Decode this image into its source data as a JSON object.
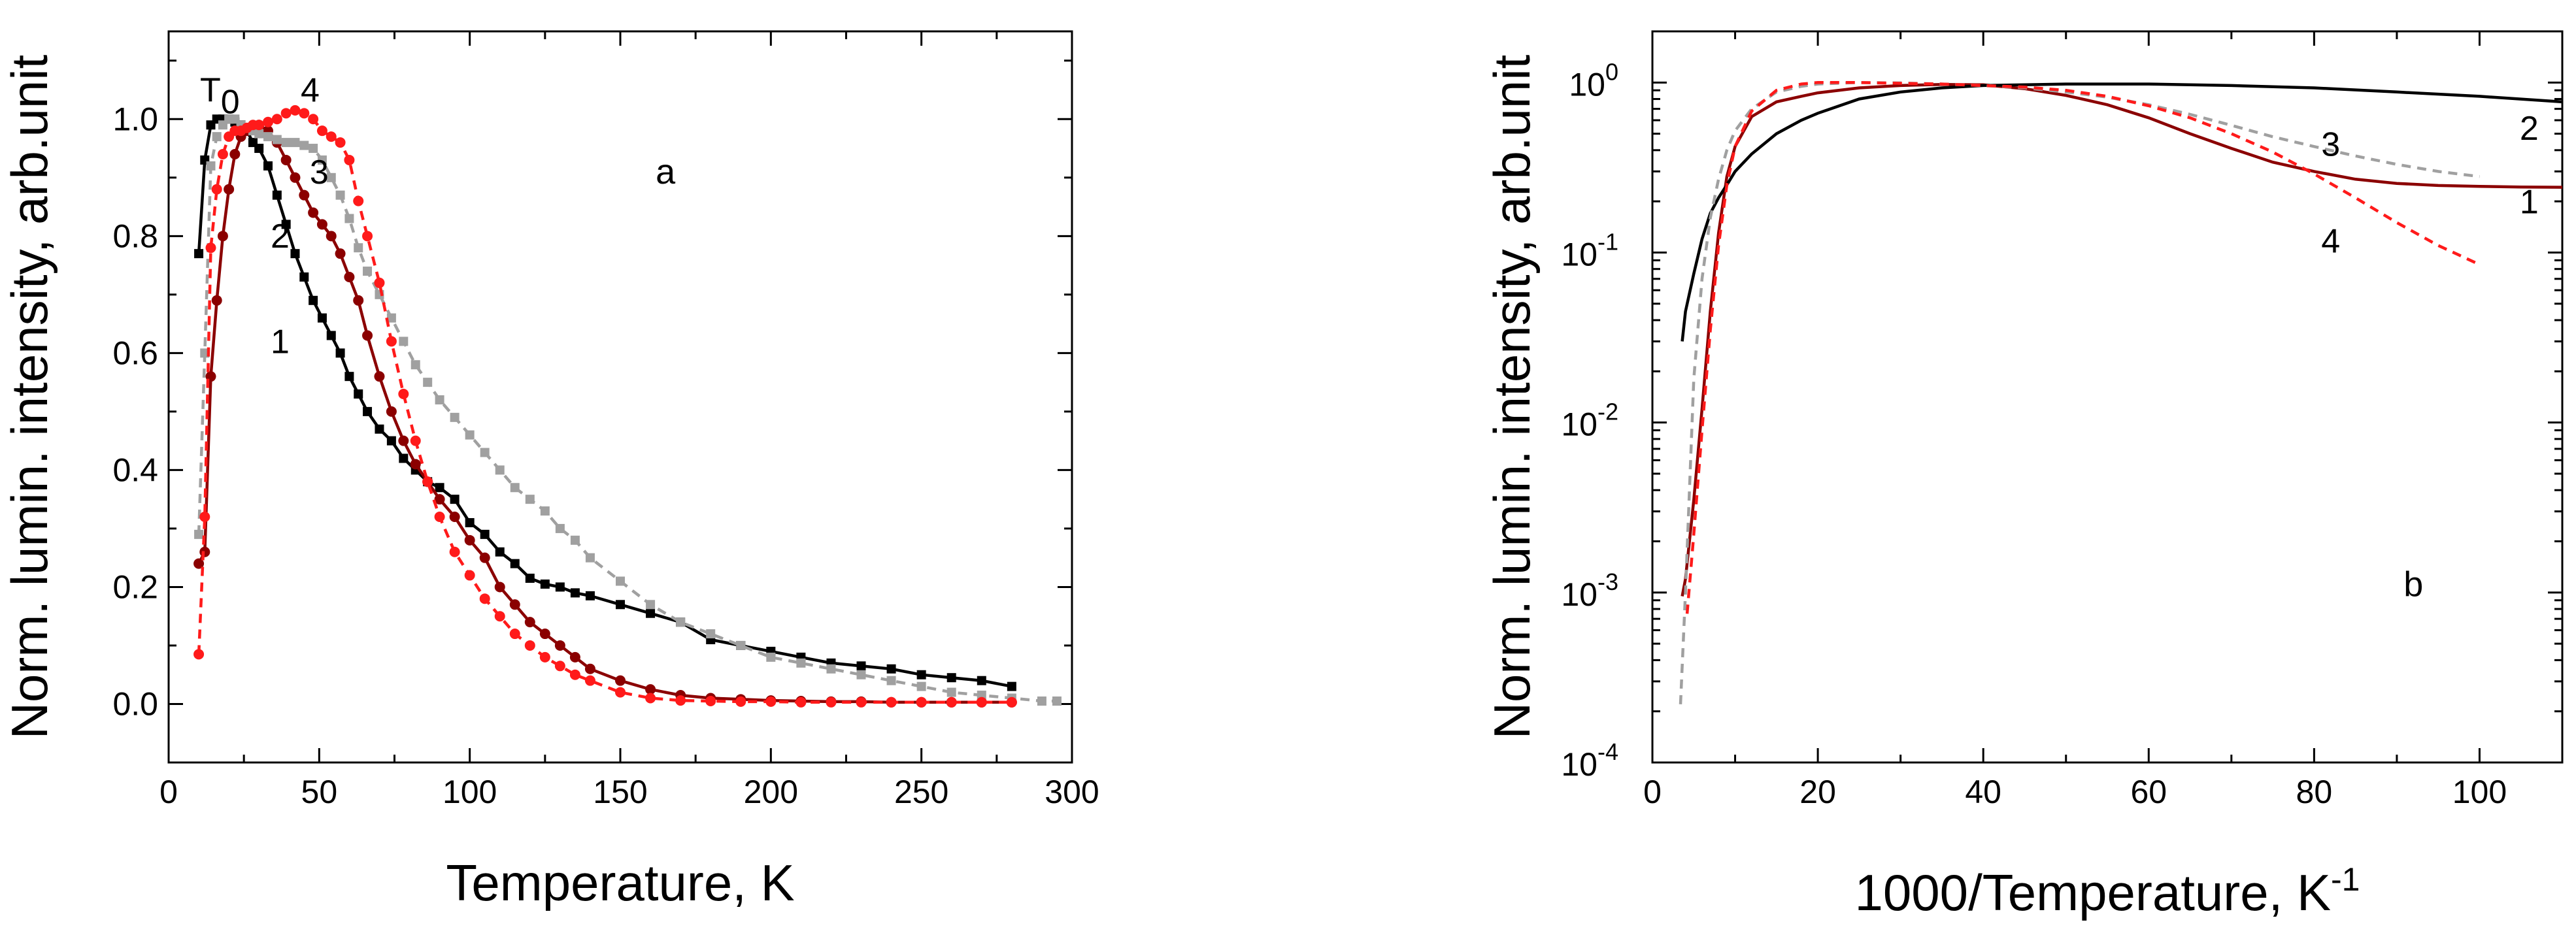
{
  "chart_data": [
    {
      "type": "line",
      "panel": "a",
      "xlabel": "Temperature, K",
      "ylabel": "Norm. lumin. intensity, arb.unit",
      "xlim": [
        0,
        300
      ],
      "ylim": [
        -0.1,
        1.15
      ],
      "xticks": [
        "0",
        "50",
        "100",
        "150",
        "200",
        "250",
        "300"
      ],
      "yticks": [
        "0.0",
        "0.2",
        "0.4",
        "0.6",
        "0.8",
        "1.0"
      ],
      "grid": false,
      "legend": "none",
      "annotations": [
        {
          "text": "T",
          "sub": "0",
          "x": 17,
          "y": 1.03
        },
        {
          "text": "a",
          "x": 165,
          "y": 0.89
        }
      ],
      "series": [
        {
          "curve_label": "1",
          "color": "#000000",
          "dash": "solid",
          "marker": "square",
          "label_pos": [
            37,
            0.6
          ],
          "x": [
            10,
            12,
            14,
            16,
            18,
            20,
            22,
            24,
            26,
            28,
            30,
            33,
            36,
            39,
            42,
            45,
            48,
            51,
            54,
            57,
            60,
            63,
            66,
            70,
            74,
            78,
            82,
            86,
            90,
            95,
            100,
            105,
            110,
            115,
            120,
            125,
            130,
            135,
            140,
            150,
            160,
            170,
            180,
            190,
            200,
            210,
            220,
            230,
            240,
            250,
            260,
            270,
            280
          ],
          "y": [
            0.77,
            0.93,
            0.99,
            1.0,
            1.0,
            1.0,
            0.995,
            0.99,
            0.98,
            0.96,
            0.95,
            0.92,
            0.87,
            0.82,
            0.77,
            0.73,
            0.69,
            0.66,
            0.63,
            0.6,
            0.56,
            0.53,
            0.5,
            0.47,
            0.45,
            0.42,
            0.4,
            0.38,
            0.37,
            0.35,
            0.31,
            0.29,
            0.26,
            0.24,
            0.215,
            0.205,
            0.2,
            0.19,
            0.185,
            0.17,
            0.155,
            0.14,
            0.11,
            0.1,
            0.09,
            0.08,
            0.07,
            0.065,
            0.06,
            0.05,
            0.045,
            0.04,
            0.03
          ]
        },
        {
          "curve_label": "2",
          "color": "#8b0000",
          "dash": "solid",
          "marker": "circle",
          "label_pos": [
            37,
            0.78
          ],
          "x": [
            10,
            12,
            14,
            16,
            18,
            20,
            22,
            24,
            26,
            28,
            30,
            33,
            36,
            39,
            42,
            45,
            48,
            51,
            54,
            57,
            60,
            63,
            66,
            70,
            74,
            78,
            82,
            86,
            90,
            95,
            100,
            105,
            110,
            115,
            120,
            125,
            130,
            135,
            140,
            150,
            160,
            170,
            180,
            190,
            200,
            210,
            220,
            230,
            240,
            250,
            260,
            270,
            280
          ],
          "y": [
            0.24,
            0.26,
            0.56,
            0.69,
            0.8,
            0.88,
            0.94,
            0.97,
            0.98,
            0.985,
            0.99,
            0.98,
            0.96,
            0.93,
            0.9,
            0.87,
            0.84,
            0.82,
            0.8,
            0.77,
            0.73,
            0.69,
            0.63,
            0.56,
            0.5,
            0.45,
            0.41,
            0.38,
            0.35,
            0.32,
            0.28,
            0.25,
            0.2,
            0.17,
            0.14,
            0.12,
            0.1,
            0.08,
            0.06,
            0.04,
            0.025,
            0.015,
            0.01,
            0.008,
            0.006,
            0.005,
            0.004,
            0.004,
            0.003,
            0.003,
            0.003,
            0.003,
            0.003
          ]
        },
        {
          "curve_label": "3",
          "color": "#a0a0a0",
          "dash": "dashed",
          "marker": "square",
          "label_pos": [
            50,
            0.89
          ],
          "x": [
            10,
            12,
            14,
            16,
            18,
            20,
            22,
            24,
            26,
            28,
            30,
            33,
            36,
            39,
            42,
            45,
            48,
            51,
            54,
            57,
            60,
            63,
            66,
            70,
            74,
            78,
            82,
            86,
            90,
            95,
            100,
            105,
            110,
            115,
            120,
            125,
            130,
            135,
            140,
            150,
            160,
            170,
            180,
            190,
            200,
            210,
            220,
            230,
            240,
            250,
            260,
            270,
            280,
            290,
            295
          ],
          "y": [
            0.29,
            0.6,
            0.92,
            0.97,
            0.99,
            1.0,
            1.0,
            0.99,
            0.985,
            0.98,
            0.975,
            0.97,
            0.965,
            0.96,
            0.96,
            0.955,
            0.95,
            0.93,
            0.9,
            0.87,
            0.83,
            0.78,
            0.74,
            0.7,
            0.66,
            0.62,
            0.58,
            0.55,
            0.52,
            0.49,
            0.46,
            0.43,
            0.4,
            0.37,
            0.35,
            0.33,
            0.3,
            0.28,
            0.25,
            0.21,
            0.17,
            0.14,
            0.12,
            0.1,
            0.08,
            0.07,
            0.06,
            0.05,
            0.04,
            0.03,
            0.02,
            0.015,
            0.01,
            0.005,
            0.005
          ]
        },
        {
          "curve_label": "4",
          "color": "#ff1a1a",
          "dash": "dashed",
          "marker": "circle",
          "label_pos": [
            47,
            1.03
          ],
          "x": [
            10,
            12,
            14,
            16,
            18,
            20,
            22,
            24,
            26,
            28,
            30,
            33,
            36,
            39,
            42,
            45,
            48,
            51,
            54,
            57,
            60,
            63,
            66,
            70,
            74,
            78,
            82,
            86,
            90,
            95,
            100,
            105,
            110,
            115,
            120,
            125,
            130,
            135,
            140,
            150,
            160,
            170,
            180,
            190,
            200,
            210,
            220,
            230,
            240,
            250,
            260,
            270,
            280
          ],
          "y": [
            0.085,
            0.32,
            0.78,
            0.88,
            0.94,
            0.97,
            0.98,
            0.98,
            0.985,
            0.99,
            0.99,
            0.995,
            1.0,
            1.01,
            1.015,
            1.01,
            1.0,
            0.98,
            0.97,
            0.96,
            0.93,
            0.86,
            0.8,
            0.72,
            0.62,
            0.53,
            0.45,
            0.38,
            0.32,
            0.26,
            0.22,
            0.18,
            0.15,
            0.12,
            0.1,
            0.08,
            0.065,
            0.05,
            0.04,
            0.02,
            0.01,
            0.006,
            0.005,
            0.004,
            0.004,
            0.003,
            0.003,
            0.003,
            0.003,
            0.003,
            0.003,
            0.003,
            0.003
          ]
        }
      ]
    },
    {
      "type": "line",
      "panel": "b",
      "xlabel": "1000/Temperature, K",
      "xlabel_sup": "-1",
      "ylabel": "Norm. lumin. intensity, arb.unit",
      "xlim": [
        0,
        110
      ],
      "ylim": [
        0.0001,
        2
      ],
      "yscale": "log",
      "xticks": [
        "0",
        "20",
        "40",
        "60",
        "80",
        "100"
      ],
      "yticks": [
        {
          "base": "10",
          "exp": "-4"
        },
        {
          "base": "10",
          "exp": "-3"
        },
        {
          "base": "10",
          "exp": "-2"
        },
        {
          "base": "10",
          "exp": "-1"
        },
        {
          "base": "10",
          "exp": "0"
        }
      ],
      "grid": false,
      "legend": "none",
      "annotations": [
        {
          "text": "b",
          "x": 92,
          "y": 0.00095
        }
      ],
      "series": [
        {
          "curve_label": "1",
          "color": "#8b0000",
          "dash": "solid",
          "label_pos": [
            106,
            0.17
          ],
          "x": [
            3.6,
            4,
            5,
            6,
            7,
            8,
            9,
            10,
            12,
            15,
            18,
            20,
            25,
            30,
            35,
            40,
            45,
            50,
            55,
            60,
            65,
            70,
            75,
            80,
            85,
            90,
            95,
            100,
            105,
            110
          ],
          "y": [
            0.00095,
            0.0012,
            0.0035,
            0.012,
            0.045,
            0.13,
            0.28,
            0.42,
            0.63,
            0.77,
            0.83,
            0.87,
            0.93,
            0.96,
            0.975,
            0.97,
            0.92,
            0.84,
            0.74,
            0.62,
            0.5,
            0.41,
            0.34,
            0.3,
            0.27,
            0.255,
            0.248,
            0.245,
            0.243,
            0.242
          ]
        },
        {
          "curve_label": "2",
          "color": "#000000",
          "dash": "solid",
          "label_pos": [
            106,
            0.46
          ],
          "x": [
            3.6,
            4,
            5,
            6,
            7,
            8,
            9,
            10,
            12,
            15,
            18,
            20,
            25,
            30,
            35,
            40,
            50,
            60,
            70,
            80,
            90,
            100,
            110
          ],
          "y": [
            0.03,
            0.045,
            0.075,
            0.12,
            0.17,
            0.21,
            0.25,
            0.3,
            0.38,
            0.5,
            0.6,
            0.66,
            0.8,
            0.88,
            0.93,
            0.96,
            0.98,
            0.98,
            0.96,
            0.93,
            0.88,
            0.83,
            0.77
          ]
        },
        {
          "curve_label": "3",
          "color": "#a0a0a0",
          "dash": "dashed",
          "label_pos": [
            82,
            0.37
          ],
          "x": [
            3.4,
            4,
            5,
            6,
            7,
            8,
            9,
            10,
            12,
            15,
            18,
            20,
            25,
            30,
            35,
            40,
            45,
            50,
            55,
            60,
            65,
            70,
            75,
            80,
            85,
            90,
            95,
            100
          ],
          "y": [
            0.00022,
            0.001,
            0.018,
            0.07,
            0.16,
            0.27,
            0.4,
            0.52,
            0.7,
            0.88,
            0.95,
            0.98,
            1.0,
            0.995,
            0.98,
            0.96,
            0.93,
            0.88,
            0.82,
            0.74,
            0.65,
            0.56,
            0.48,
            0.42,
            0.37,
            0.33,
            0.3,
            0.28
          ]
        },
        {
          "curve_label": "4",
          "color": "#ff1a1a",
          "dash": "dashed",
          "label_pos": [
            82,
            0.1
          ],
          "x": [
            4.2,
            5,
            6,
            7,
            8,
            9,
            10,
            12,
            15,
            18,
            20,
            25,
            30,
            35,
            40,
            45,
            50,
            55,
            60,
            65,
            70,
            75,
            80,
            85,
            90,
            95,
            100
          ],
          "y": [
            0.00075,
            0.0022,
            0.009,
            0.035,
            0.11,
            0.25,
            0.42,
            0.68,
            0.9,
            0.98,
            1.0,
            1.0,
            0.99,
            0.98,
            0.96,
            0.94,
            0.9,
            0.83,
            0.73,
            0.62,
            0.5,
            0.39,
            0.29,
            0.21,
            0.15,
            0.11,
            0.085
          ]
        }
      ]
    }
  ]
}
